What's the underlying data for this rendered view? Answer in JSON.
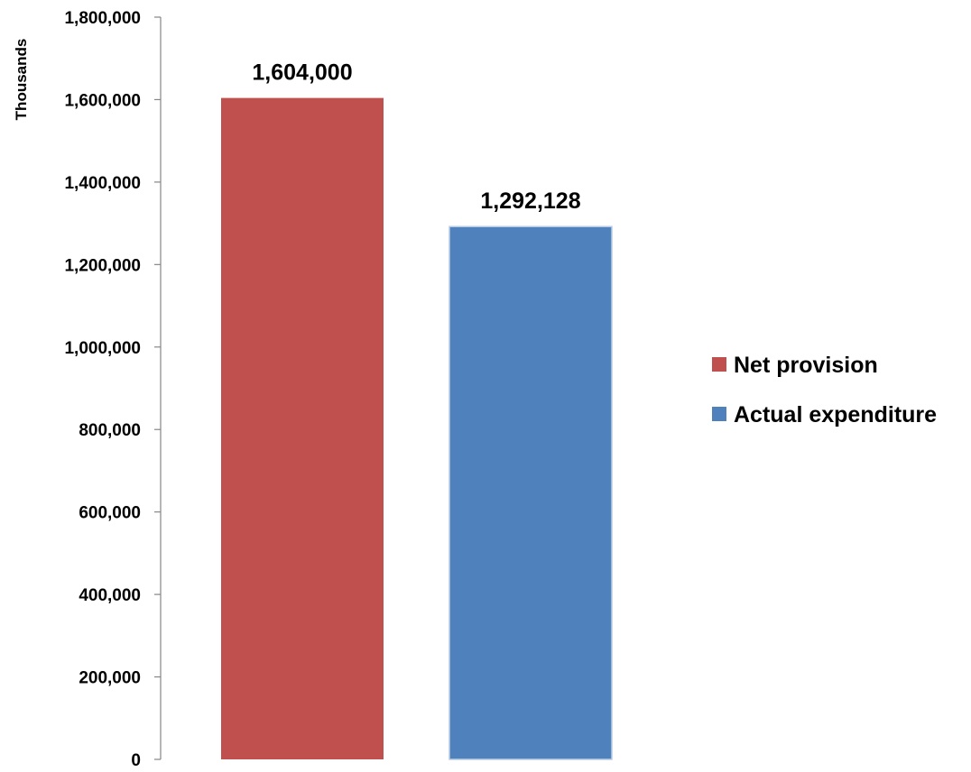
{
  "chart_data": {
    "type": "bar",
    "categories": [
      "Net provision",
      "Actual expenditure"
    ],
    "values": [
      1604000,
      1292128
    ],
    "data_labels": [
      "1,604,000",
      "1,292,128"
    ],
    "colors": [
      "#C0504D",
      "#4F81BD"
    ],
    "title": "",
    "xlabel": "",
    "ylabel": "Thousands",
    "ylim": [
      0,
      1800000
    ],
    "yticks": [
      0,
      200000,
      400000,
      600000,
      800000,
      1000000,
      1200000,
      1400000,
      1600000,
      1800000
    ],
    "ytick_labels": [
      "0",
      "200,000",
      "400,000",
      "600,000",
      "800,000",
      "1,000,000",
      "1,200,000",
      "1,400,000",
      "1,600,000",
      "1,800,000"
    ],
    "grid": false,
    "legend": {
      "position": "right",
      "entries": [
        "Net provision",
        "Actual expenditure"
      ]
    }
  }
}
